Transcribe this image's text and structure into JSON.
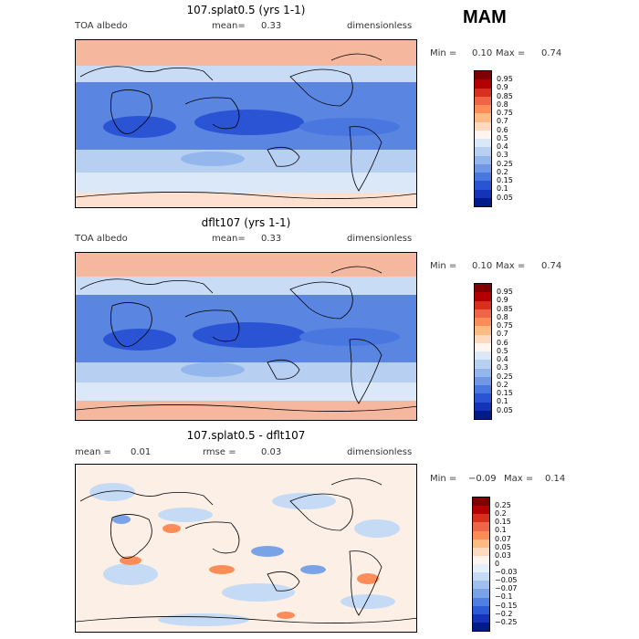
{
  "season": "MAM",
  "panels": [
    {
      "id": "top",
      "title": "107.splat0.5 (yrs 1-1)",
      "left_label": "TOA albedo",
      "stat_label": "mean=",
      "stat_value": "0.33",
      "right_label": "dimensionless",
      "min_label": "Min =",
      "min_value": "0.10",
      "max_label": "Max =",
      "max_value": "0.74"
    },
    {
      "id": "middle",
      "title": "dflt107 (yrs 1-1)",
      "left_label": "TOA albedo",
      "stat_label": "mean=",
      "stat_value": "0.33",
      "right_label": "dimensionless",
      "min_label": "Min =",
      "min_value": "0.10",
      "max_label": "Max =",
      "max_value": "0.74"
    },
    {
      "id": "bottom",
      "title": "107.splat0.5 - dflt107",
      "left_label": "mean =",
      "left_value": "0.01",
      "stat_label": "rmse =",
      "stat_value": "0.03",
      "right_label": "dimensionless",
      "min_label": "Min =",
      "min_value": "−0.09",
      "max_label": "Max =",
      "max_value": "0.14"
    }
  ],
  "albedo_scale": {
    "labels": [
      "0.95",
      "0.9",
      "0.85",
      "0.8",
      "0.75",
      "0.7",
      "0.6",
      "0.5",
      "0.4",
      "0.3",
      "0.25",
      "0.2",
      "0.15",
      "0.1",
      "0.05"
    ],
    "colors": [
      "#7f0000",
      "#b30000",
      "#d7301f",
      "#ef6548",
      "#fc8d59",
      "#fdbb84",
      "#fdd9c0",
      "#fff5ee",
      "#dbe8f8",
      "#b7d0f2",
      "#93b6ec",
      "#6f97e6",
      "#4a76df",
      "#2a54d4",
      "#1433b8",
      "#001a8a"
    ]
  },
  "diff_scale": {
    "labels": [
      "0.25",
      "0.2",
      "0.15",
      "0.1",
      "0.07",
      "0.05",
      "0.03",
      "0",
      "−0.03",
      "−0.05",
      "−0.07",
      "−0.1",
      "−0.15",
      "−0.2",
      "−0.25"
    ],
    "colors": [
      "#7f0000",
      "#b30000",
      "#d7301f",
      "#ef6548",
      "#fc8d59",
      "#fdbb84",
      "#fdd9c0",
      "#fff5ee",
      "#e6f0fb",
      "#c5dbf5",
      "#9fc0ee",
      "#7aa3e7",
      "#4f7fe0",
      "#2d5ad5",
      "#1433b8",
      "#001a8a"
    ]
  }
}
